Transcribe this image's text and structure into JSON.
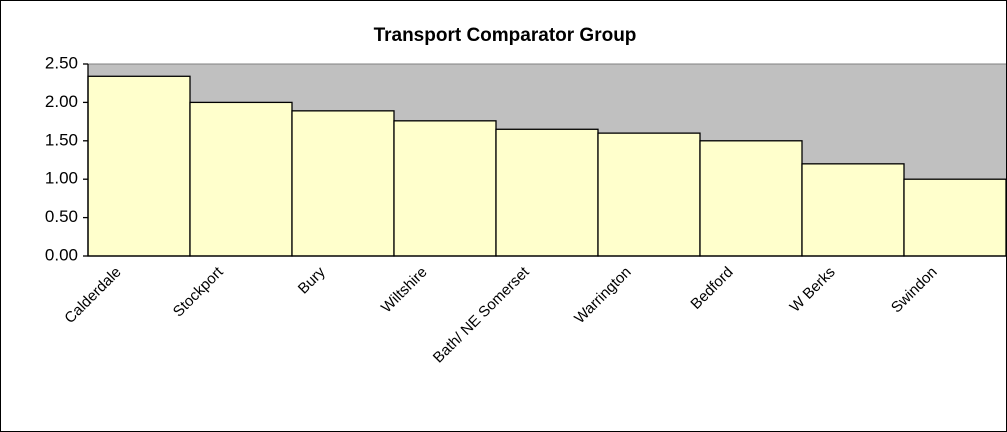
{
  "chart_data": {
    "type": "bar",
    "title": "Transport Comparator Group",
    "categories": [
      "Calderdale",
      "Stockport",
      "Bury",
      "Wiltshire",
      "Bath/ NE Somerset",
      "Warrington",
      "Bedford",
      "W Berks",
      "Swindon"
    ],
    "values": [
      2.34,
      2.0,
      1.89,
      1.76,
      1.65,
      1.6,
      1.5,
      1.2,
      1.0
    ],
    "color": "#ffffcc",
    "ylim": [
      0,
      2.5
    ],
    "yticks": [
      {
        "value": 0,
        "label": "0.00"
      },
      {
        "value": 0.5,
        "label": "0.50"
      },
      {
        "value": 1,
        "label": "1.00"
      },
      {
        "value": 1.5,
        "label": "1.50"
      },
      {
        "value": 2,
        "label": "2.00"
      },
      {
        "value": 2.5,
        "label": "2.50"
      }
    ]
  }
}
